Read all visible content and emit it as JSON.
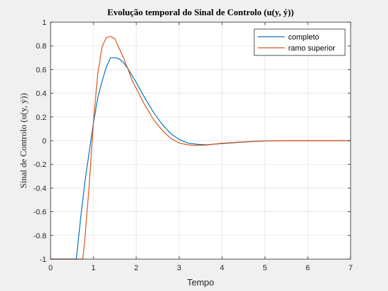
{
  "chart_data": {
    "type": "line",
    "title": "Evolução temporal do Sinal de Controlo (u(y, ẏ))",
    "xlabel": "Tempo",
    "ylabel": "Sinal de Controlo (u(y, ẏ))",
    "xlim": [
      0,
      7
    ],
    "ylim": [
      -1,
      1
    ],
    "xticks": [
      0,
      1,
      2,
      3,
      4,
      5,
      6,
      7
    ],
    "yticks": [
      -1,
      -0.8,
      -0.6,
      -0.4,
      -0.2,
      0,
      0.2,
      0.4,
      0.6,
      0.8,
      1
    ],
    "xtick_labels": [
      "0",
      "1",
      "2",
      "3",
      "4",
      "5",
      "6",
      "7"
    ],
    "ytick_labels": [
      "-1",
      "-0.8",
      "-0.6",
      "-0.4",
      "-0.2",
      "0",
      "0.2",
      "0.4",
      "0.6",
      "0.8",
      "1"
    ],
    "grid": true,
    "legend_position": "top-right",
    "series": [
      {
        "name": "completo",
        "color": "#0072bd",
        "x": [
          0,
          0.6,
          0.7,
          0.8,
          0.9,
          1.0,
          1.1,
          1.2,
          1.3,
          1.4,
          1.5,
          1.6,
          1.7,
          1.8,
          1.9,
          2.0,
          2.2,
          2.4,
          2.6,
          2.8,
          3.0,
          3.2,
          3.4,
          3.6,
          3.8,
          4.0,
          4.5,
          5.0,
          5.5,
          6.0,
          6.5,
          7.0
        ],
        "y": [
          -1,
          -1,
          -0.66,
          -0.35,
          -0.1,
          0.15,
          0.36,
          0.5,
          0.62,
          0.7,
          0.7,
          0.69,
          0.66,
          0.61,
          0.55,
          0.49,
          0.36,
          0.24,
          0.14,
          0.06,
          0.01,
          -0.02,
          -0.03,
          -0.035,
          -0.03,
          -0.025,
          -0.012,
          -0.003,
          0,
          0,
          0,
          0
        ]
      },
      {
        "name": "ramo superior",
        "color": "#d95319",
        "x": [
          0,
          0.75,
          0.8,
          0.9,
          1.0,
          1.1,
          1.2,
          1.3,
          1.4,
          1.5,
          1.6,
          1.7,
          1.8,
          1.9,
          2.0,
          2.2,
          2.4,
          2.6,
          2.8,
          3.0,
          3.2,
          3.4,
          3.6,
          3.8,
          4.0,
          4.5,
          5.0,
          5.5,
          6.0,
          6.5,
          7.0
        ],
        "y": [
          -1,
          -1,
          -0.83,
          -0.38,
          0.16,
          0.56,
          0.79,
          0.87,
          0.88,
          0.86,
          0.78,
          0.7,
          0.61,
          0.51,
          0.44,
          0.3,
          0.18,
          0.09,
          0.02,
          -0.02,
          -0.035,
          -0.04,
          -0.038,
          -0.03,
          -0.022,
          -0.01,
          -0.002,
          0,
          0,
          0,
          0
        ]
      }
    ]
  }
}
